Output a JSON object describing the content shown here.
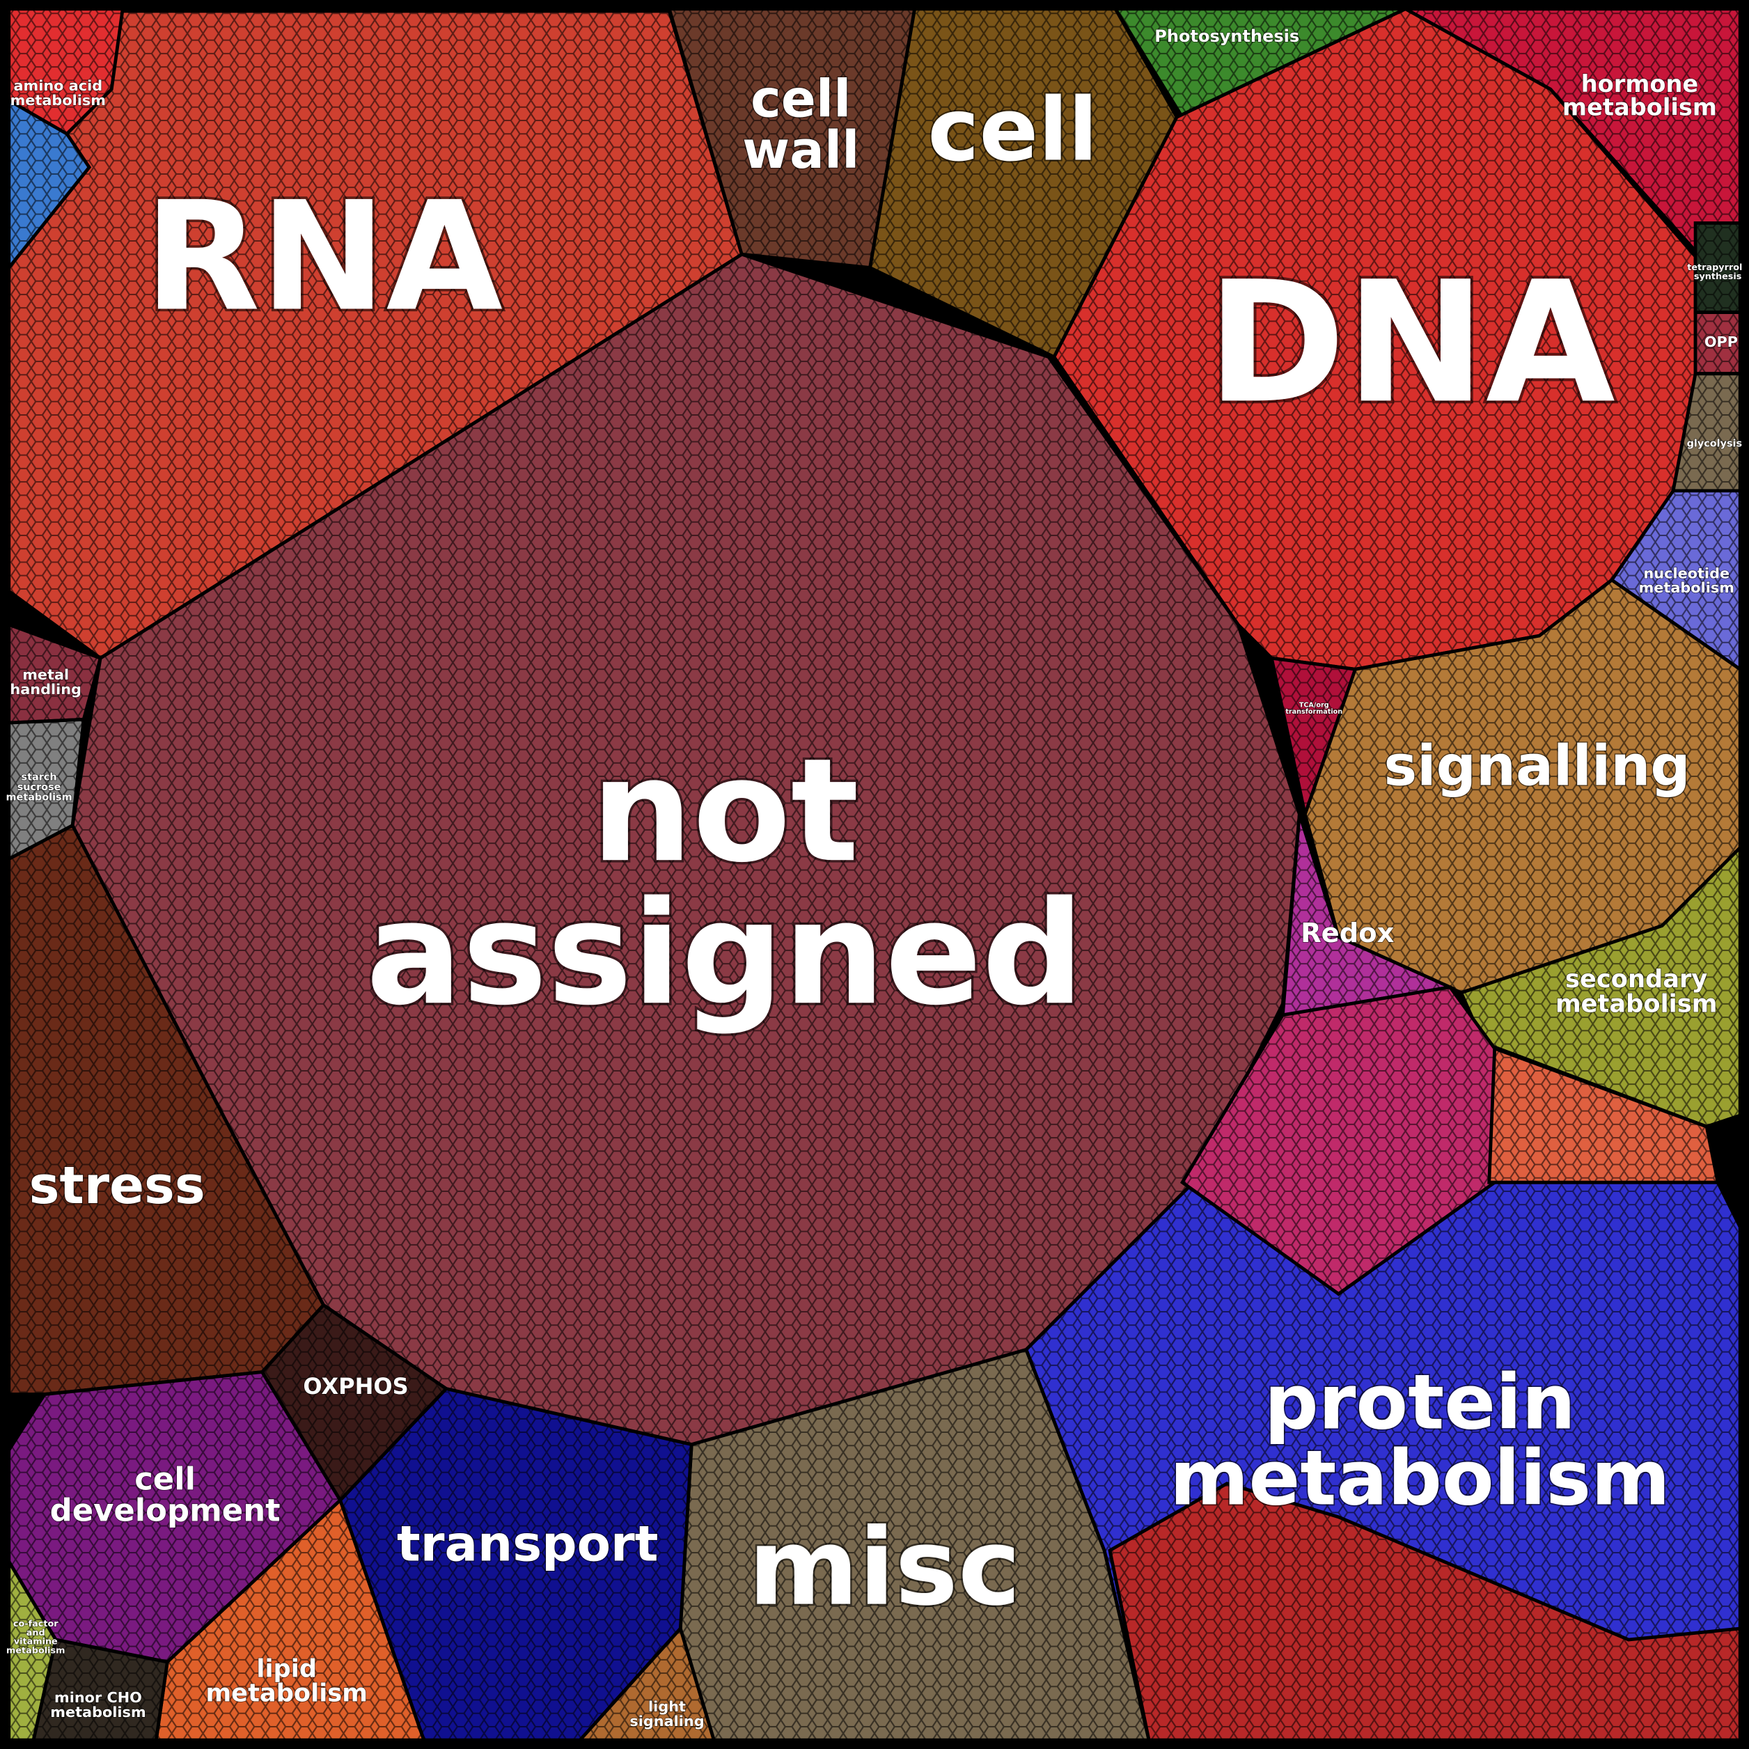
{
  "regions": [
    {
      "label": [
        "not",
        "assigned"
      ]
    },
    {
      "label": [
        "RNA"
      ]
    },
    {
      "label": [
        "amino acid",
        "metabolism"
      ]
    },
    {
      "label": [
        "cell",
        "wall"
      ]
    },
    {
      "label": [
        "cell"
      ]
    },
    {
      "label": [
        "Photosynthesis"
      ]
    },
    {
      "label": [
        "hormone",
        "metabolism"
      ]
    },
    {
      "label": [
        "DNA"
      ]
    },
    {
      "label": [
        "tetrapyrrole",
        "synthesis"
      ]
    },
    {
      "label": [
        "OPP"
      ]
    },
    {
      "label": [
        "glycolysis"
      ]
    },
    {
      "label": [
        "nucleotide",
        "metabolism"
      ]
    },
    {
      "label": [
        "TCA/org",
        "transformation"
      ]
    },
    {
      "label": [
        "signalling"
      ]
    },
    {
      "label": [
        "Redox"
      ]
    },
    {
      "label": [
        "secondary",
        "metabolism"
      ]
    },
    {
      "label": [
        "protein",
        "metabolism"
      ]
    },
    {
      "label": [
        "misc"
      ]
    },
    {
      "label": [
        "transport"
      ]
    },
    {
      "label": [
        "OXPHOS"
      ]
    },
    {
      "label": [
        "stress"
      ]
    },
    {
      "label": [
        "metal",
        "handling"
      ]
    },
    {
      "label": [
        "starch",
        "sucrose",
        "metabolism"
      ]
    },
    {
      "label": [
        "cell",
        "development"
      ]
    },
    {
      "label": [
        "lipid",
        "metabolism"
      ]
    },
    {
      "label": [
        "minor CHO",
        "metabolism"
      ]
    },
    {
      "label": [
        "co-factor",
        "and",
        "vitamine",
        "metabolism"
      ]
    },
    {
      "label": [
        "light",
        "signaling"
      ]
    }
  ]
}
